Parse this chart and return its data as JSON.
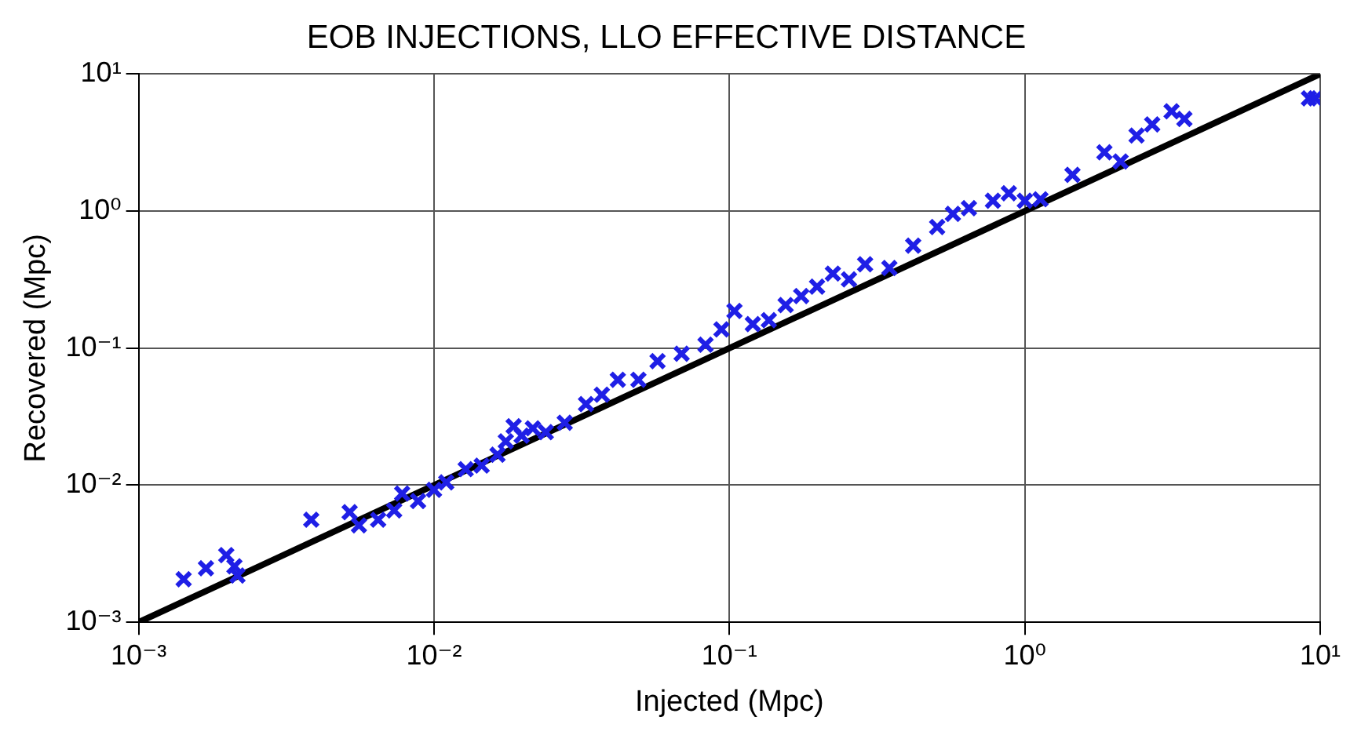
{
  "chart_data": {
    "type": "scatter",
    "title": "EOB INJECTIONS, LLO EFFECTIVE DISTANCE",
    "xlabel": "Injected (Mpc)",
    "ylabel": "Recovered (Mpc)",
    "log": "xy",
    "grid": true,
    "legend": false,
    "xlim": [
      0.001,
      10
    ],
    "ylim": [
      0.001,
      10
    ],
    "xticks": [
      {
        "value": 0.001,
        "label": "10⁻³"
      },
      {
        "value": 0.01,
        "label": "10⁻²"
      },
      {
        "value": 0.1,
        "label": "10⁻¹"
      },
      {
        "value": 1,
        "label": "10⁰"
      },
      {
        "value": 10,
        "label": "10¹"
      }
    ],
    "yticks": [
      {
        "value": 0.001,
        "label": "10⁻³"
      },
      {
        "value": 0.01,
        "label": "10⁻²"
      },
      {
        "value": 0.1,
        "label": "10⁻¹"
      },
      {
        "value": 1,
        "label": "10⁰"
      },
      {
        "value": 10,
        "label": "10¹"
      }
    ],
    "series": [
      {
        "marker": "cross",
        "color": "#1f1fe6",
        "x": [
          0.00142,
          0.00169,
          0.00198,
          0.00211,
          0.00216,
          0.00384,
          0.00518,
          0.00557,
          0.00647,
          0.00733,
          0.0078,
          0.00883,
          0.01,
          0.011,
          0.0128,
          0.0145,
          0.0164,
          0.0175,
          0.0186,
          0.0198,
          0.0216,
          0.0239,
          0.0277,
          0.0327,
          0.037,
          0.0419,
          0.0492,
          0.0571,
          0.0689,
          0.083,
          0.094,
          0.104,
          0.12,
          0.136,
          0.155,
          0.175,
          0.198,
          0.224,
          0.254,
          0.288,
          0.348,
          0.419,
          0.505,
          0.571,
          0.647,
          0.78,
          0.883,
          1.0,
          1.13,
          1.45,
          1.86,
          2.11,
          2.39,
          2.7,
          3.14,
          3.47,
          9.16,
          9.64
        ],
        "values": [
          0.00206,
          0.00248,
          0.00309,
          0.00256,
          0.00219,
          0.0056,
          0.00635,
          0.00509,
          0.0056,
          0.00655,
          0.00869,
          0.00766,
          0.00925,
          0.0105,
          0.0131,
          0.0139,
          0.0167,
          0.0209,
          0.0269,
          0.023,
          0.026,
          0.0244,
          0.0286,
          0.0391,
          0.0457,
          0.0587,
          0.0587,
          0.0803,
          0.091,
          0.106,
          0.137,
          0.187,
          0.15,
          0.16,
          0.206,
          0.24,
          0.281,
          0.35,
          0.318,
          0.409,
          0.385,
          0.56,
          0.766,
          0.955,
          1.05,
          1.19,
          1.35,
          1.19,
          1.22,
          1.84,
          2.69,
          2.3,
          3.56,
          4.29,
          5.35,
          4.71,
          6.65,
          6.65
        ]
      },
      {
        "type": "line",
        "marker": "none",
        "color": "#000000",
        "x": [
          0.001,
          10
        ],
        "values": [
          0.001,
          10
        ]
      }
    ]
  }
}
